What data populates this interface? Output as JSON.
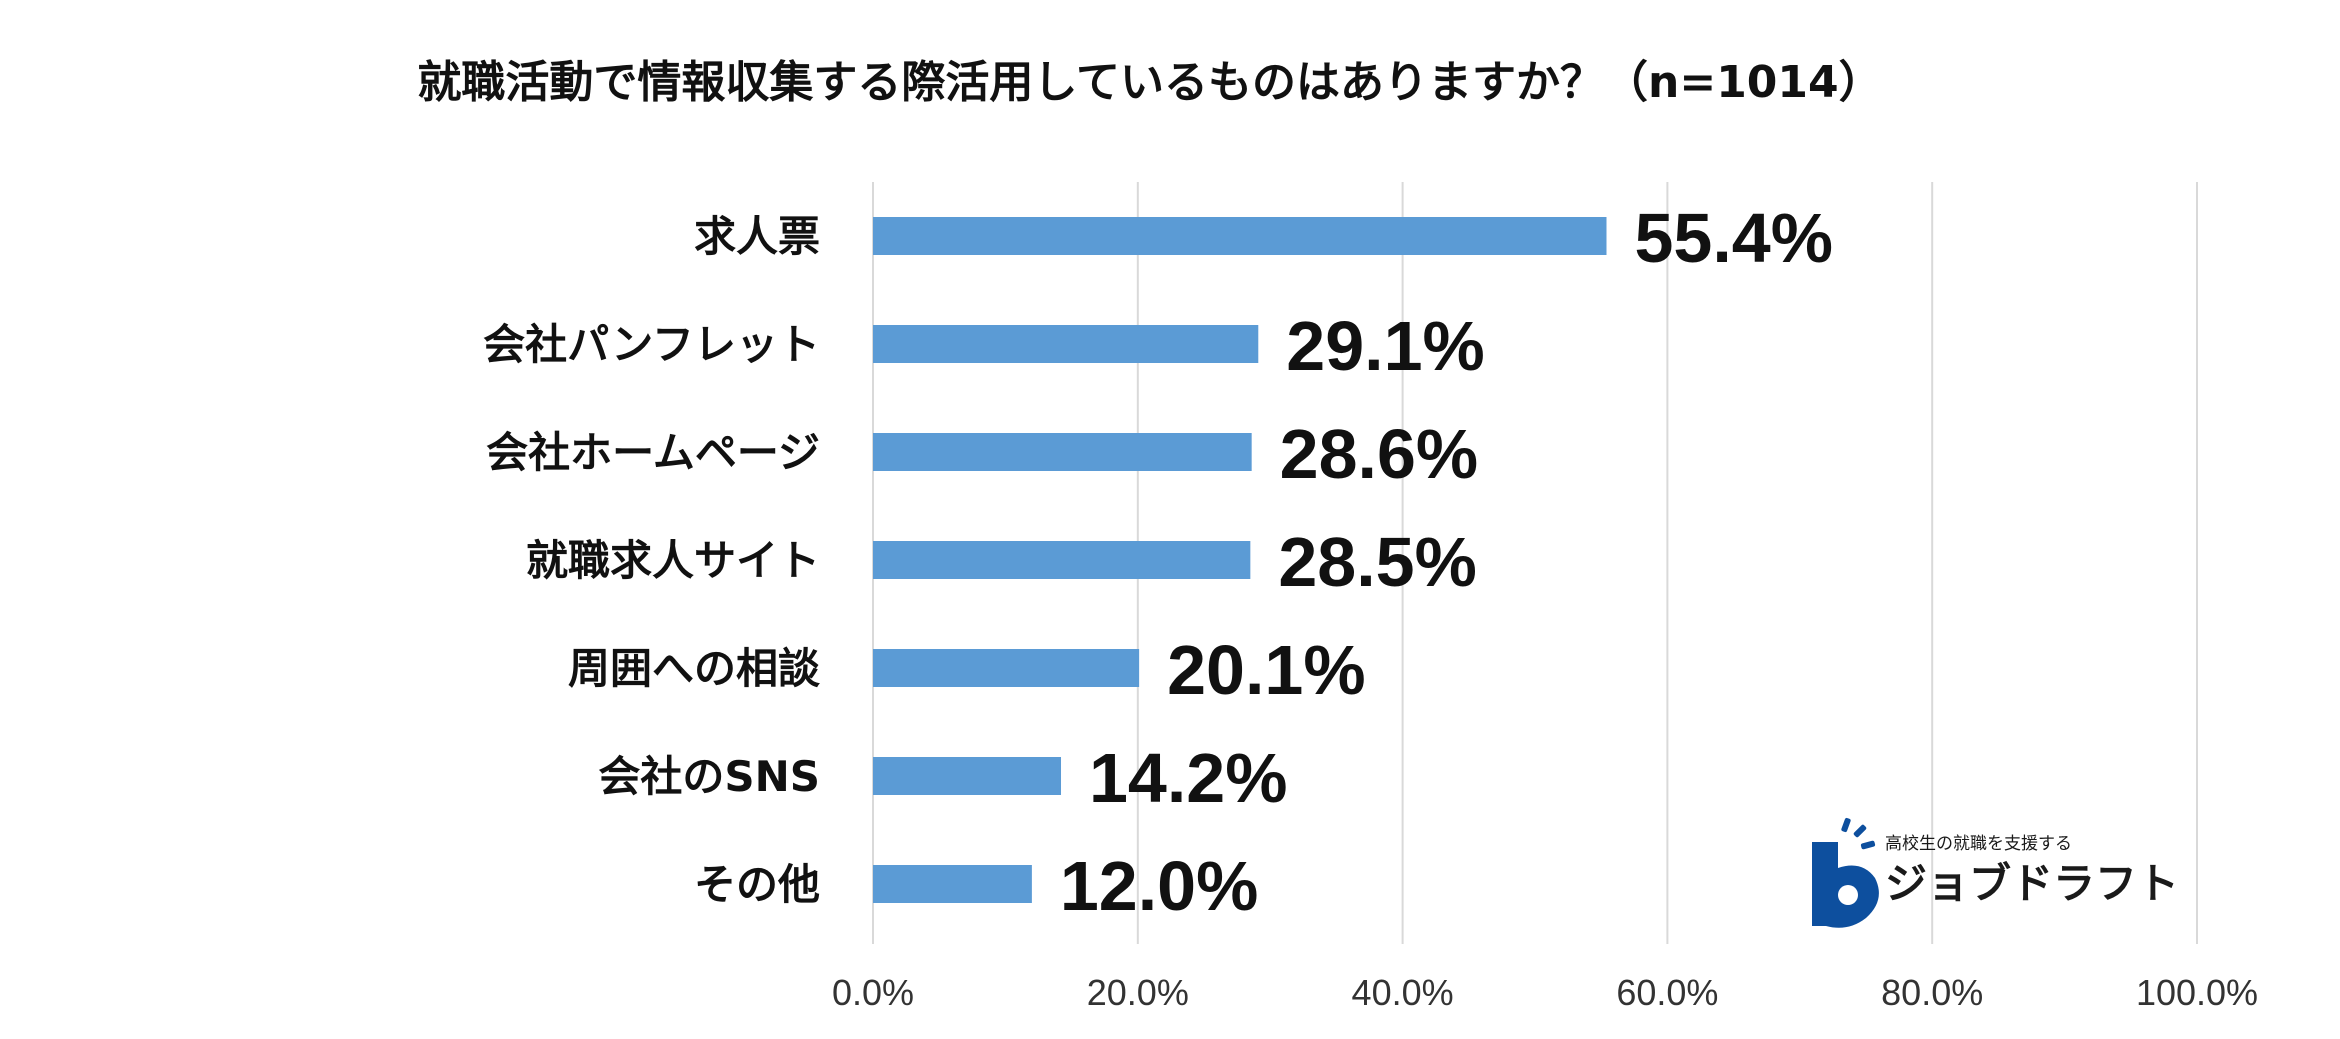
{
  "chart_data": {
    "type": "bar",
    "orientation": "horizontal",
    "title": "就職活動で情報収集する際活用しているものはありますか？（n=1014）",
    "categories": [
      "求人票",
      "会社パンフレット",
      "会社ホームページ",
      "就職求人サイト",
      "周囲への相談",
      "会社のSNS",
      "その他"
    ],
    "values": [
      55.4,
      29.1,
      28.6,
      28.5,
      20.1,
      14.2,
      12.0
    ],
    "value_labels": [
      "55.4%",
      "29.1%",
      "28.6%",
      "28.5%",
      "20.1%",
      "14.2%",
      "12.0%"
    ],
    "xlim": [
      0,
      100
    ],
    "xticks": [
      0,
      20,
      40,
      60,
      80,
      100
    ],
    "xtick_labels": [
      "0.0%",
      "20.0%",
      "40.0%",
      "60.0%",
      "80.0%",
      "100.0%"
    ],
    "xlabel": "",
    "ylabel": "",
    "grid": "vertical",
    "legend": "none",
    "bar_color": "#5b9bd5",
    "grid_color": "#d9d9d9"
  },
  "logo": {
    "tagline": "高校生の就職を支援する",
    "name": "ジョブドラフト",
    "color": "#0d4f9e"
  }
}
